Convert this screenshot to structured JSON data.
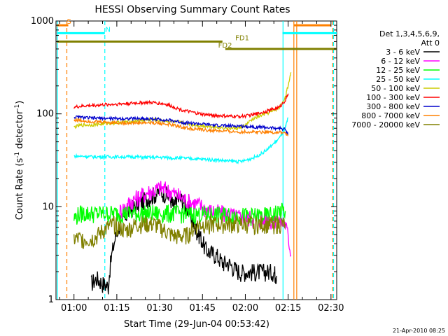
{
  "chart_data": {
    "type": "line",
    "title": "HESSI Observing Summary Count Rates",
    "xlabel": "Start Time (29-Jun-04 00:53:42)",
    "ylabel_main": "Count Rate (s",
    "ylabel_sup1": "-1",
    "ylabel_mid": " detector",
    "ylabel_sup2": "-1",
    "ylabel_end": ")",
    "yscale": "log",
    "xlim": [
      53.7,
      152
    ],
    "ylim": [
      1,
      1000
    ],
    "x_ticks": [
      {
        "value": 60,
        "label": "01:00"
      },
      {
        "value": 75,
        "label": "01:15"
      },
      {
        "value": 90,
        "label": "01:30"
      },
      {
        "value": 105,
        "label": "01:45"
      },
      {
        "value": 120,
        "label": "02:00"
      },
      {
        "value": 135,
        "label": "02:15"
      },
      {
        "value": 150,
        "label": "02:30"
      }
    ],
    "y_ticks": [
      {
        "value": 1,
        "label": "1"
      },
      {
        "value": 10,
        "label": "10"
      },
      {
        "value": 100,
        "label": "100"
      },
      {
        "value": 1000,
        "label": "1000"
      }
    ],
    "legend_header_1": "Det 1,3,4,5,6,9,",
    "legend_header_2": "Att 0",
    "footer": "21-Apr-2010 08:25",
    "series": [
      {
        "name": "3 - 6 keV",
        "color": "#000000",
        "x": [
          66,
          68,
          70,
          72,
          74,
          76,
          78,
          80,
          82,
          84,
          86,
          88,
          90,
          92,
          94,
          95,
          96,
          98,
          100,
          102,
          103,
          104,
          106,
          108,
          110,
          112,
          114,
          116,
          118,
          120,
          122,
          124,
          126,
          128,
          130,
          131
        ],
        "y": [
          1.5,
          1.7,
          1.5,
          1.4,
          4.0,
          6.5,
          8.0,
          9.5,
          10.5,
          11.5,
          12.5,
          13.5,
          14.5,
          14.0,
          12.0,
          9.5,
          12.0,
          12.0,
          9.0,
          6.5,
          5.5,
          5.0,
          3.5,
          3.2,
          3.0,
          2.5,
          2.5,
          2.2,
          2.0,
          2.0,
          2.0,
          2.0,
          2.0,
          2.0,
          2.0,
          1.8
        ]
      },
      {
        "name": "6 - 12 keV",
        "color": "#ff00ff",
        "x": [
          76,
          78,
          80,
          82,
          84,
          86,
          88,
          90,
          92,
          94,
          96,
          98,
          100,
          102,
          104,
          106,
          108,
          110,
          112,
          114,
          116,
          118,
          120,
          122,
          124,
          126,
          128,
          130,
          132,
          134,
          136
        ],
        "y": [
          9.0,
          10.0,
          11.5,
          12.5,
          13.5,
          14.5,
          15.0,
          16.0,
          15.5,
          14.5,
          13.5,
          12.5,
          11.5,
          11.0,
          10.5,
          9.5,
          9.0,
          8.8,
          8.5,
          8.3,
          8.0,
          7.8,
          7.8,
          7.6,
          7.5,
          7.3,
          7.2,
          7.0,
          7.0,
          6.5,
          3.0
        ]
      },
      {
        "name": "12 - 25 keV",
        "color": "#00ff00",
        "x": [
          60,
          62,
          64,
          66,
          68,
          70,
          72,
          74,
          76,
          78,
          80,
          82,
          84,
          86,
          88,
          90,
          92,
          94,
          96,
          98,
          100,
          102,
          104,
          106,
          108,
          110,
          112,
          114,
          116,
          118,
          120,
          122,
          124,
          126,
          128,
          130,
          132,
          134
        ],
        "y": [
          7.5,
          8.5,
          8.5,
          8.5,
          8.5,
          8.5,
          8.5,
          8.5,
          8.5,
          8.5,
          8.5,
          8.5,
          8.5,
          8.5,
          8.5,
          8.5,
          8.5,
          8.5,
          8.5,
          8.5,
          8.3,
          8.3,
          8.3,
          8.3,
          8.3,
          8.2,
          8.2,
          8.2,
          8.2,
          8.2,
          8.0,
          8.0,
          8.0,
          8.0,
          8.0,
          8.5,
          9.0,
          9.0
        ]
      },
      {
        "name": "25 - 50 keV",
        "color": "#00ffff",
        "x": [
          60,
          62,
          64,
          66,
          68,
          70,
          72,
          74,
          76,
          78,
          80,
          82,
          84,
          86,
          88,
          90,
          92,
          94,
          96,
          98,
          100,
          102,
          104,
          106,
          108,
          110,
          112,
          114,
          116,
          118,
          120,
          122,
          124,
          126,
          128,
          130,
          132,
          134,
          135
        ],
        "y": [
          35,
          35,
          35,
          34.5,
          34.5,
          34.5,
          34.5,
          34.5,
          34.5,
          34.5,
          34.5,
          34.5,
          34,
          34,
          34,
          34,
          34,
          33.5,
          33.5,
          33.5,
          33,
          33,
          32.5,
          32.5,
          32,
          32,
          31.5,
          31,
          31,
          30.5,
          31.5,
          33,
          35,
          38,
          42,
          48,
          55,
          70,
          90
        ]
      },
      {
        "name": "50 - 100 keV",
        "color": "#cccc00",
        "x": [
          60,
          62,
          64,
          66,
          68,
          70,
          72,
          74,
          76,
          78,
          80,
          82,
          84,
          86,
          88,
          90,
          92,
          94,
          96,
          98,
          100,
          102,
          104,
          106,
          108,
          110,
          112,
          114,
          116,
          118,
          120,
          122,
          124,
          126,
          128,
          130,
          132,
          134,
          135,
          136
        ],
        "y": [
          72,
          75,
          76,
          76,
          77,
          78,
          79,
          80,
          81,
          82,
          83,
          84,
          85,
          86,
          86,
          85,
          84,
          83,
          82,
          80,
          78,
          76,
          75,
          74,
          73,
          72,
          71,
          70,
          70,
          70,
          75,
          85,
          92,
          97,
          102,
          108,
          118,
          150,
          200,
          280
        ]
      },
      {
        "name": "100 - 300 keV",
        "color": "#ff0000",
        "x": [
          60,
          62,
          64,
          66,
          68,
          70,
          72,
          74,
          76,
          78,
          80,
          82,
          84,
          86,
          88,
          90,
          92,
          94,
          96,
          98,
          100,
          102,
          104,
          106,
          108,
          110,
          112,
          114,
          116,
          118,
          120,
          122,
          124,
          126,
          128,
          130,
          132,
          134,
          135
        ],
        "y": [
          118,
          120,
          122,
          123,
          124,
          125,
          126,
          127,
          128,
          129,
          130,
          131,
          132,
          132,
          132,
          130,
          127,
          122,
          115,
          110,
          106,
          103,
          100,
          98,
          97,
          96,
          95,
          94,
          94,
          94,
          95,
          97,
          100,
          104,
          108,
          113,
          118,
          140,
          165
        ]
      },
      {
        "name": "300 - 800 keV",
        "color": "#0000cc",
        "x": [
          60,
          62,
          64,
          66,
          68,
          70,
          72,
          74,
          76,
          78,
          80,
          82,
          84,
          86,
          88,
          90,
          92,
          94,
          96,
          98,
          100,
          102,
          104,
          106,
          108,
          110,
          112,
          114,
          116,
          118,
          120,
          122,
          124,
          126,
          128,
          130,
          132,
          134,
          135
        ],
        "y": [
          92,
          92,
          91,
          90,
          90,
          90,
          89,
          89,
          89,
          89,
          89,
          89,
          89,
          88,
          88,
          87,
          86,
          85,
          83,
          81,
          80,
          79,
          78,
          77,
          76,
          75,
          75,
          74,
          74,
          74,
          73,
          73,
          72,
          72,
          71,
          70,
          70,
          68,
          60
        ]
      },
      {
        "name": "800 - 7000 keV",
        "color": "#ff8000",
        "x": [
          60,
          62,
          64,
          66,
          68,
          70,
          72,
          74,
          76,
          78,
          80,
          82,
          84,
          86,
          88,
          90,
          92,
          94,
          96,
          98,
          100,
          102,
          104,
          106,
          108,
          110,
          112,
          114,
          116,
          118,
          120,
          122,
          124,
          126,
          128,
          130,
          132,
          134,
          135
        ],
        "y": [
          86,
          85,
          84,
          83,
          82,
          82,
          81,
          81,
          80,
          80,
          80,
          80,
          80,
          80,
          80,
          79,
          78,
          76,
          74,
          72,
          70,
          69,
          68,
          67,
          66,
          66,
          65,
          65,
          64,
          64,
          64,
          64,
          64,
          64,
          64,
          63,
          63,
          62,
          58
        ]
      },
      {
        "name": "7000 - 20000 keV",
        "color": "#808000",
        "x": [
          60,
          62,
          64,
          66,
          68,
          70,
          72,
          74,
          76,
          78,
          80,
          82,
          84,
          86,
          88,
          90,
          92,
          94,
          96,
          98,
          100,
          102,
          104,
          106,
          108,
          110,
          112,
          114,
          116,
          118,
          120,
          122,
          124,
          126,
          128,
          130,
          132,
          134
        ],
        "y": [
          4.5,
          4.5,
          4.5,
          4.5,
          4.8,
          5.5,
          6.0,
          6.5,
          6.0,
          5.5,
          6.0,
          6.5,
          6.5,
          6.5,
          6.5,
          6.0,
          5.5,
          5.0,
          4.8,
          4.8,
          5.0,
          6.0,
          6.5,
          6.5,
          6.5,
          6.5,
          6.5,
          6.5,
          6.5,
          6.5,
          6.5,
          6.5,
          6.5,
          6.5,
          6.5,
          6.5,
          6.5,
          6.5
        ]
      }
    ],
    "state_lines": [
      {
        "label": "S",
        "color": "#ff8000",
        "y": 900,
        "x_start": 54,
        "x_end": 58,
        "label_x": 57
      },
      {
        "label": "S",
        "color": "#ff8000",
        "y": 900,
        "x_start": 137,
        "x_end": 150,
        "label_x": null
      },
      {
        "label": "N",
        "color": "#00ffff",
        "y": 740,
        "x_start": 54,
        "x_end": 70.8,
        "label_x": 70.5
      },
      {
        "label": "N",
        "color": "#00ffff",
        "y": 740,
        "x_start": 133,
        "x_end": 152,
        "label_x": null
      },
      {
        "label": "FD1",
        "color": "#808000",
        "y": 600,
        "x_start": 54,
        "x_end": 112,
        "label_x": 116
      },
      {
        "label": "FD2",
        "color": "#808000",
        "y": 500,
        "x_start": 113,
        "x_end": 152,
        "label_x": 110
      }
    ],
    "vertical_markers": [
      {
        "x": 54.2,
        "color": "#00ffff",
        "style": "solid"
      },
      {
        "x": 57.5,
        "color": "#ff8000",
        "style": "dashed"
      },
      {
        "x": 70.8,
        "color": "#00ffff",
        "style": "dashed"
      },
      {
        "x": 133.2,
        "color": "#00ffff",
        "style": "solid"
      },
      {
        "x": 137.0,
        "color": "#ff8000",
        "style": "solid"
      },
      {
        "x": 138.0,
        "color": "#ff8000",
        "style": "solid"
      },
      {
        "x": 150.6,
        "color": "#ff8000",
        "style": "dashed"
      },
      {
        "x": 150.9,
        "color": "#00ffff",
        "style": "dashed"
      }
    ]
  }
}
